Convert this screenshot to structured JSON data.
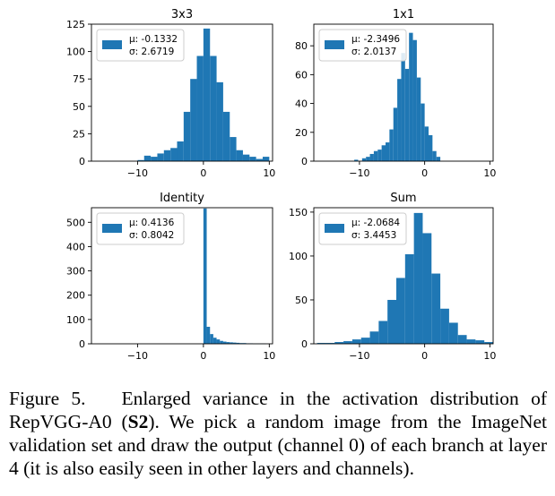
{
  "chart_data": [
    {
      "type": "bar",
      "title": "3x3",
      "xlim": [
        -17,
        10.5
      ],
      "ylim": [
        0,
        125
      ],
      "xticks": [
        -10,
        0,
        10
      ],
      "yticks": [
        0,
        25,
        50,
        75,
        100,
        125
      ],
      "bin_width": 1,
      "bins": [
        {
          "x": -10,
          "y": 1
        },
        {
          "x": -9,
          "y": 5
        },
        {
          "x": -8,
          "y": 4
        },
        {
          "x": -7,
          "y": 7
        },
        {
          "x": -6,
          "y": 10
        },
        {
          "x": -5,
          "y": 12
        },
        {
          "x": -4,
          "y": 18
        },
        {
          "x": -3,
          "y": 45
        },
        {
          "x": -2,
          "y": 75
        },
        {
          "x": -1,
          "y": 96
        },
        {
          "x": 0,
          "y": 121
        },
        {
          "x": 1,
          "y": 96
        },
        {
          "x": 2,
          "y": 72
        },
        {
          "x": 3,
          "y": 45
        },
        {
          "x": 4,
          "y": 22
        },
        {
          "x": 5,
          "y": 10
        },
        {
          "x": 6,
          "y": 6
        },
        {
          "x": 7,
          "y": 4
        },
        {
          "x": 8,
          "y": 2
        },
        {
          "x": 9,
          "y": 4
        }
      ],
      "legend": {
        "mu": "μ: -0.1332",
        "sigma": "σ: 2.6719"
      }
    },
    {
      "type": "bar",
      "title": "1x1",
      "xlim": [
        -17,
        10.5
      ],
      "ylim": [
        0,
        95
      ],
      "xticks": [
        -10,
        0,
        10
      ],
      "yticks": [
        0,
        20,
        40,
        60,
        80
      ],
      "bin_width": 0.6,
      "bins": [
        {
          "x": -10.8,
          "y": 1
        },
        {
          "x": -10.2,
          "y": 0
        },
        {
          "x": -9.6,
          "y": 2
        },
        {
          "x": -9.0,
          "y": 3
        },
        {
          "x": -8.4,
          "y": 5
        },
        {
          "x": -7.8,
          "y": 7
        },
        {
          "x": -7.2,
          "y": 8
        },
        {
          "x": -6.6,
          "y": 11
        },
        {
          "x": -6.0,
          "y": 13
        },
        {
          "x": -5.4,
          "y": 22
        },
        {
          "x": -4.8,
          "y": 37
        },
        {
          "x": -4.2,
          "y": 57
        },
        {
          "x": -3.6,
          "y": 75
        },
        {
          "x": -3.0,
          "y": 64
        },
        {
          "x": -2.4,
          "y": 89
        },
        {
          "x": -1.8,
          "y": 84
        },
        {
          "x": -1.2,
          "y": 58
        },
        {
          "x": -0.6,
          "y": 40
        },
        {
          "x": 0.0,
          "y": 24
        },
        {
          "x": 0.6,
          "y": 18
        },
        {
          "x": 1.2,
          "y": 7
        },
        {
          "x": 1.8,
          "y": 3
        }
      ],
      "legend": {
        "mu": "μ: -2.3496",
        "sigma": "σ: 2.0137"
      }
    },
    {
      "type": "bar",
      "title": "Identity",
      "xlim": [
        -17,
        10.5
      ],
      "ylim": [
        0,
        560
      ],
      "xticks": [
        -10,
        0,
        10
      ],
      "yticks": [
        0,
        100,
        200,
        300,
        400,
        500
      ],
      "bin_width": 0.5,
      "bins": [
        {
          "x": 0.0,
          "y": 557
        },
        {
          "x": 0.5,
          "y": 70
        },
        {
          "x": 1.0,
          "y": 40
        },
        {
          "x": 1.5,
          "y": 25
        },
        {
          "x": 2.0,
          "y": 18
        },
        {
          "x": 2.5,
          "y": 12
        },
        {
          "x": 3.0,
          "y": 9
        },
        {
          "x": 3.5,
          "y": 7
        },
        {
          "x": 4.0,
          "y": 6
        },
        {
          "x": 4.5,
          "y": 5
        },
        {
          "x": 5.0,
          "y": 4
        },
        {
          "x": 5.5,
          "y": 3
        },
        {
          "x": 6.0,
          "y": 3
        },
        {
          "x": 6.5,
          "y": 2
        },
        {
          "x": 7.0,
          "y": 2
        },
        {
          "x": 7.5,
          "y": 1
        },
        {
          "x": 8.0,
          "y": 1
        },
        {
          "x": 8.5,
          "y": 1
        },
        {
          "x": 9.0,
          "y": 1
        }
      ],
      "legend": {
        "mu": "μ: 0.4136",
        "sigma": "σ: 0.8042"
      }
    },
    {
      "type": "bar",
      "title": "Sum",
      "xlim": [
        -17,
        10.5
      ],
      "ylim": [
        0,
        155
      ],
      "xticks": [
        -10,
        0,
        10
      ],
      "yticks": [
        0,
        50,
        100,
        150
      ],
      "bin_width": 1.35,
      "bins": [
        {
          "x": -16.5,
          "y": 1
        },
        {
          "x": -15.15,
          "y": 1
        },
        {
          "x": -13.8,
          "y": 2
        },
        {
          "x": -12.45,
          "y": 3
        },
        {
          "x": -11.1,
          "y": 5
        },
        {
          "x": -9.75,
          "y": 7
        },
        {
          "x": -8.4,
          "y": 14
        },
        {
          "x": -7.05,
          "y": 26
        },
        {
          "x": -5.7,
          "y": 50
        },
        {
          "x": -4.35,
          "y": 75
        },
        {
          "x": -3.0,
          "y": 102
        },
        {
          "x": -1.65,
          "y": 149
        },
        {
          "x": -0.3,
          "y": 126
        },
        {
          "x": 1.05,
          "y": 80
        },
        {
          "x": 2.4,
          "y": 40
        },
        {
          "x": 3.75,
          "y": 24
        },
        {
          "x": 5.1,
          "y": 10
        },
        {
          "x": 6.45,
          "y": 5
        },
        {
          "x": 7.8,
          "y": 4
        },
        {
          "x": 9.15,
          "y": 2
        }
      ],
      "legend": {
        "mu": "μ: -2.0684",
        "sigma": "σ: 3.4453"
      }
    }
  ],
  "colors": {
    "bar": "#1f77b4",
    "axis": "#000000",
    "legend_border": "#cccccc"
  },
  "caption": {
    "label": "Figure 5.",
    "text_before": "Enlarged variance in the activation distribution of RepVGG-A0 (",
    "bold": "S2",
    "text_after": "). We pick a random image from the ImageNet validation set and draw the output (channel 0) of each branch at layer 4 (it is also easily seen in other layers and channels)."
  }
}
